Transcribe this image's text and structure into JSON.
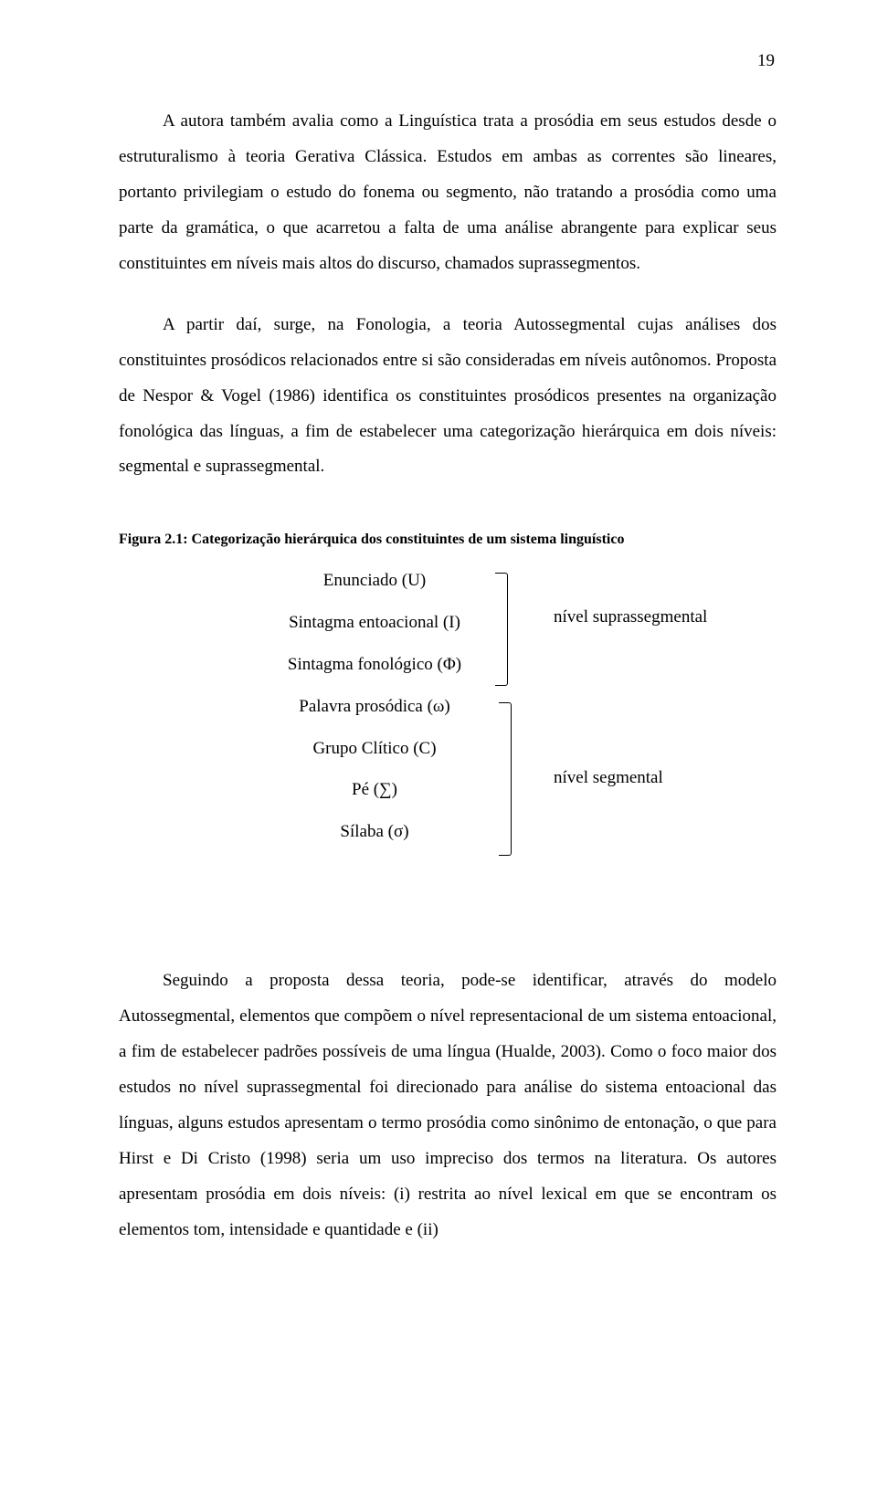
{
  "page_number": "19",
  "paragraphs": {
    "p1": "A autora também avalia como a Linguística trata a prosódia em seus estudos desde o estruturalismo à teoria Gerativa Clássica. Estudos em ambas as correntes são lineares, portanto privilegiam o estudo do fonema ou segmento, não tratando a prosódia como uma parte da gramática, o que acarretou a falta de uma análise abrangente para explicar seus constituintes em níveis mais altos do discurso, chamados suprassegmentos.",
    "p2": "A partir daí, surge, na Fonologia, a teoria Autossegmental cujas análises dos constituintes prosódicos relacionados entre si são consideradas em níveis autônomos. Proposta de Nespor & Vogel (1986) identifica os constituintes prosódicos presentes na organização fonológica das línguas, a fim de estabelecer uma categorização hierárquica em dois níveis: segmental e suprassegmental.",
    "p3": "Seguindo a proposta dessa teoria, pode-se identificar, através do modelo Autossegmental, elementos que compõem o nível representacional de um sistema entoacional, a fim de estabelecer padrões possíveis de uma língua (Hualde, 2003). Como o foco maior dos estudos no nível suprassegmental foi direcionado para análise do sistema entoacional das línguas, alguns estudos apresentam o termo prosódia como sinônimo de entonação, o que para Hirst e Di Cristo (1998) seria um uso impreciso dos termos na literatura. Os autores apresentam prosódia em dois níveis: (i) restrita ao nível lexical em que se encontram os elementos tom, intensidade e quantidade e (ii)"
  },
  "figure": {
    "caption": "Figura 2.1: Categorização hierárquica dos constituintes de um sistema linguístico",
    "hierarchy": {
      "h1": "Enunciado (U)",
      "h2": "Sintagma entoacional (I)",
      "h3": "Sintagma fonológico (Φ)",
      "h4": "Palavra prosódica (ω)",
      "h5": "Grupo Clítico (C)",
      "h6": "Pé (∑)",
      "h7": "Sílaba (σ)"
    },
    "labels": {
      "upper": "nível suprassegmental",
      "lower": "nível segmental"
    }
  }
}
